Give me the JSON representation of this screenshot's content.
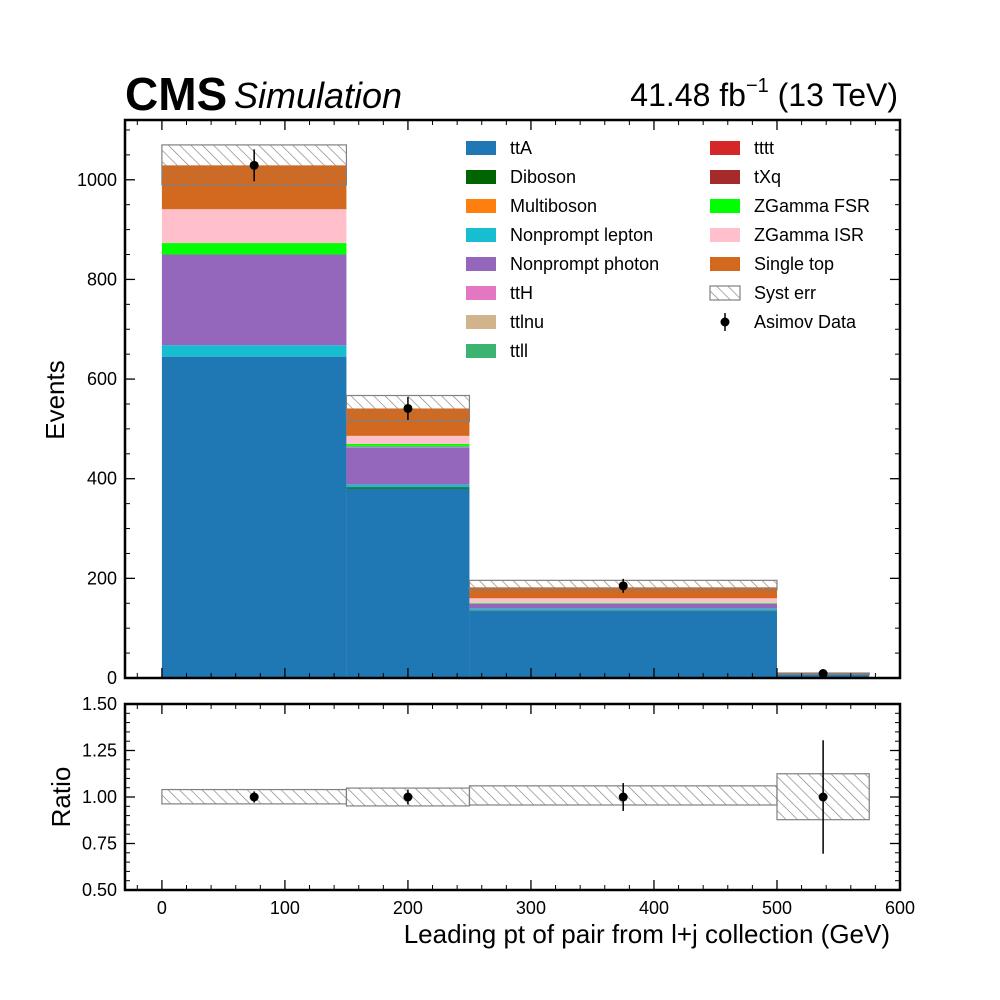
{
  "header": {
    "experiment": "CMS",
    "label": "Simulation",
    "lumi_text": "41.48 fb",
    "lumi_exp": "−1",
    "energy_text": " (13 TeV)"
  },
  "colors": {
    "hatch": "#808080",
    "data_marker": "#000000",
    "frame": "#000000"
  },
  "chart_data": [
    {
      "type": "bar",
      "stacked": true,
      "xlabel": "",
      "ylabel": "Events",
      "xlim": [
        -30,
        600
      ],
      "ylim": [
        0,
        1120
      ],
      "x_edges": [
        0,
        150,
        250,
        500,
        575
      ],
      "yticks": [
        0,
        200,
        400,
        600,
        800,
        1000
      ],
      "series": [
        {
          "name": "ttA",
          "color": "#1f77b4",
          "values": [
            645,
            380,
            135,
            6
          ]
        },
        {
          "name": "Diboson",
          "color": "#006400",
          "values": [
            0,
            3,
            1,
            0
          ]
        },
        {
          "name": "Multiboson",
          "color": "#ff7f0e",
          "values": [
            0,
            0,
            0,
            0
          ]
        },
        {
          "name": "Nonprompt lepton",
          "color": "#17becf",
          "values": [
            23,
            5,
            3,
            0
          ]
        },
        {
          "name": "Nonprompt photon",
          "color": "#9467bd",
          "values": [
            182,
            75,
            10,
            0
          ]
        },
        {
          "name": "ttH",
          "color": "#e377c2",
          "values": [
            0,
            0,
            0,
            0
          ]
        },
        {
          "name": "ttlnu",
          "color": "#d2b48c",
          "values": [
            0,
            1,
            0,
            0
          ]
        },
        {
          "name": "ttll",
          "color": "#3cb371",
          "values": [
            0,
            2,
            1,
            0
          ]
        },
        {
          "name": "tttt",
          "color": "#d62728",
          "values": [
            0,
            0,
            0,
            0
          ]
        },
        {
          "name": "tXq",
          "color": "#a52a2a",
          "values": [
            0,
            0,
            0,
            0
          ]
        },
        {
          "name": "ZGamma FSR",
          "color": "#00ff00",
          "values": [
            23,
            4,
            1,
            0
          ]
        },
        {
          "name": "ZGamma ISR",
          "color": "#ffc0cb",
          "values": [
            68,
            16,
            9,
            1
          ]
        },
        {
          "name": "Single top",
          "color": "#d2691e",
          "values": [
            88,
            55,
            22,
            2
          ]
        }
      ],
      "syst_err": {
        "name": "Syst err",
        "up": [
          1070,
          567,
          196,
          10
        ],
        "down": [
          990,
          515,
          177,
          7
        ]
      },
      "data": {
        "name": "Asimov Data",
        "x": [
          75,
          200,
          375,
          537.5
        ],
        "y": [
          1029,
          541,
          185,
          9
        ],
        "yerr": [
          32,
          23,
          14,
          3
        ]
      },
      "legend_position": "top-right"
    },
    {
      "type": "scatter",
      "xlabel": "Leading pt of pair from l+j collection (GeV)",
      "ylabel": "Ratio",
      "xlim": [
        -30,
        600
      ],
      "ylim": [
        0.5,
        1.5
      ],
      "xticks": [
        0,
        100,
        200,
        300,
        400,
        500,
        600
      ],
      "yticks": [
        0.5,
        0.75,
        1.0,
        1.25,
        1.5
      ],
      "ytick_labels": [
        "0.50",
        "0.75",
        "1.00",
        "1.25",
        "1.50"
      ],
      "x_edges": [
        0,
        150,
        250,
        500,
        575
      ],
      "band": {
        "up": [
          1.04,
          1.048,
          1.06,
          1.125
        ],
        "down": [
          0.963,
          0.952,
          0.957,
          0.878
        ]
      },
      "points": {
        "x": [
          75,
          200,
          375,
          537.5
        ],
        "y": [
          1.0,
          1.0,
          1.0,
          1.0
        ],
        "yerr": [
          0.03,
          0.04,
          0.075,
          0.305
        ]
      }
    }
  ]
}
